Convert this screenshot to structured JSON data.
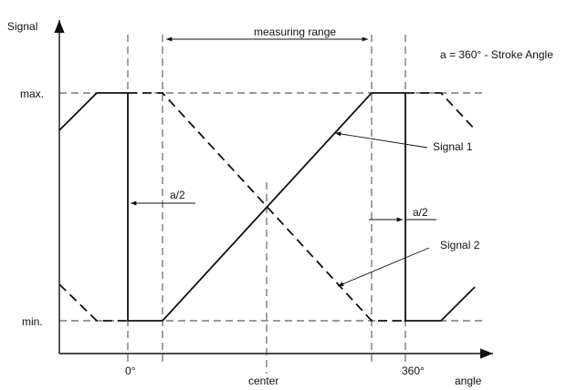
{
  "labels": {
    "y_axis": "Signal",
    "x_axis": "angle",
    "max": "max.",
    "min": "min.",
    "zero": "0°",
    "center": "center",
    "full": "360°",
    "measuring_range": "measuring range",
    "formula": "a = 360° - Stroke Angle",
    "half_a_left": "a/2",
    "half_a_right": "a/2",
    "signal1": "Signal 1",
    "signal2": "Signal 2"
  }
}
